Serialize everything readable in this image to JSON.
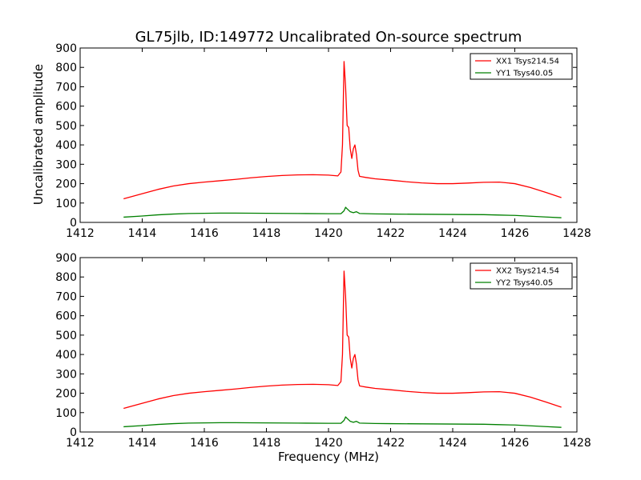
{
  "figure": {
    "title": "GL75jlb, ID:149772 Uncalibrated On-source spectrum",
    "ylabel": "Uncalibrated amplitude",
    "xlabel": "Frequency (MHz)"
  },
  "colors": {
    "red_series": "#ff0000",
    "green_series": "#008000"
  },
  "chart_data": [
    {
      "type": "line",
      "title": "GL75jlb, ID:149772 Uncalibrated On-source spectrum",
      "xlabel": "",
      "ylabel": "Uncalibrated amplitude",
      "xlim": [
        1412,
        1428
      ],
      "ylim": [
        0,
        900
      ],
      "xticks": [
        1412,
        1414,
        1416,
        1418,
        1420,
        1422,
        1424,
        1426,
        1428
      ],
      "yticks": [
        0,
        100,
        200,
        300,
        400,
        500,
        600,
        700,
        800,
        900
      ],
      "grid": false,
      "legend_position": "top-right",
      "series": [
        {
          "name": "XX1 Tsys214.54",
          "color": "#ff0000",
          "x": [
            1413.4,
            1414.0,
            1414.5,
            1415.0,
            1415.5,
            1416.0,
            1416.5,
            1417.0,
            1417.5,
            1418.0,
            1418.5,
            1419.0,
            1419.5,
            1420.0,
            1420.3,
            1420.4,
            1420.45,
            1420.5,
            1420.55,
            1420.6,
            1420.65,
            1420.7,
            1420.75,
            1420.8,
            1420.85,
            1420.9,
            1420.95,
            1421.0,
            1421.1,
            1421.2,
            1421.5,
            1422.0,
            1422.5,
            1423.0,
            1423.5,
            1424.0,
            1424.5,
            1425.0,
            1425.5,
            1426.0,
            1426.5,
            1427.0,
            1427.5
          ],
          "y": [
            122,
            148,
            170,
            188,
            200,
            208,
            215,
            222,
            230,
            237,
            242,
            245,
            246,
            244,
            240,
            260,
            400,
            830,
            700,
            500,
            490,
            380,
            330,
            380,
            400,
            350,
            270,
            238,
            235,
            232,
            225,
            218,
            210,
            204,
            200,
            200,
            203,
            207,
            208,
            200,
            180,
            155,
            128
          ]
        },
        {
          "name": "YY1 Tsys40.05",
          "color": "#008000",
          "x": [
            1413.4,
            1414.0,
            1414.5,
            1415.0,
            1415.5,
            1416.0,
            1416.5,
            1417.0,
            1418.0,
            1419.0,
            1420.0,
            1420.4,
            1420.5,
            1420.55,
            1420.6,
            1420.7,
            1420.8,
            1420.9,
            1421.0,
            1421.5,
            1422.0,
            1423.0,
            1424.0,
            1425.0,
            1425.5,
            1426.0,
            1426.5,
            1427.0,
            1427.5
          ],
          "y": [
            27,
            33,
            39,
            43,
            46,
            47,
            48,
            48,
            47,
            46,
            45,
            45,
            60,
            78,
            70,
            55,
            50,
            55,
            46,
            44,
            43,
            42,
            41,
            40,
            38,
            36,
            32,
            28,
            24
          ]
        }
      ]
    },
    {
      "type": "line",
      "title": "",
      "xlabel": "Frequency (MHz)",
      "ylabel": "",
      "xlim": [
        1412,
        1428
      ],
      "ylim": [
        0,
        900
      ],
      "xticks": [
        1412,
        1414,
        1416,
        1418,
        1420,
        1422,
        1424,
        1426,
        1428
      ],
      "yticks": [
        0,
        100,
        200,
        300,
        400,
        500,
        600,
        700,
        800,
        900
      ],
      "grid": false,
      "legend_position": "top-right",
      "series": [
        {
          "name": "XX2 Tsys214.54",
          "color": "#ff0000",
          "x": [
            1413.4,
            1414.0,
            1414.5,
            1415.0,
            1415.5,
            1416.0,
            1416.5,
            1417.0,
            1417.5,
            1418.0,
            1418.5,
            1419.0,
            1419.5,
            1420.0,
            1420.3,
            1420.4,
            1420.45,
            1420.5,
            1420.55,
            1420.6,
            1420.65,
            1420.7,
            1420.75,
            1420.8,
            1420.85,
            1420.9,
            1420.95,
            1421.0,
            1421.1,
            1421.2,
            1421.5,
            1422.0,
            1422.5,
            1423.0,
            1423.5,
            1424.0,
            1424.5,
            1425.0,
            1425.5,
            1426.0,
            1426.5,
            1427.0,
            1427.5
          ],
          "y": [
            122,
            148,
            170,
            188,
            200,
            208,
            215,
            222,
            230,
            237,
            242,
            245,
            246,
            244,
            240,
            260,
            400,
            830,
            700,
            500,
            490,
            380,
            330,
            380,
            400,
            350,
            270,
            238,
            235,
            232,
            225,
            218,
            210,
            204,
            200,
            200,
            203,
            207,
            208,
            200,
            180,
            155,
            128
          ]
        },
        {
          "name": "YY2 Tsys40.05",
          "color": "#008000",
          "x": [
            1413.4,
            1414.0,
            1414.5,
            1415.0,
            1415.5,
            1416.0,
            1416.5,
            1417.0,
            1418.0,
            1419.0,
            1420.0,
            1420.4,
            1420.5,
            1420.55,
            1420.6,
            1420.7,
            1420.8,
            1420.9,
            1421.0,
            1421.5,
            1422.0,
            1423.0,
            1424.0,
            1425.0,
            1425.5,
            1426.0,
            1426.5,
            1427.0,
            1427.5
          ],
          "y": [
            27,
            33,
            39,
            43,
            46,
            47,
            48,
            48,
            47,
            46,
            45,
            45,
            60,
            78,
            70,
            55,
            50,
            55,
            46,
            44,
            43,
            42,
            41,
            40,
            38,
            36,
            32,
            28,
            24
          ]
        }
      ]
    }
  ]
}
